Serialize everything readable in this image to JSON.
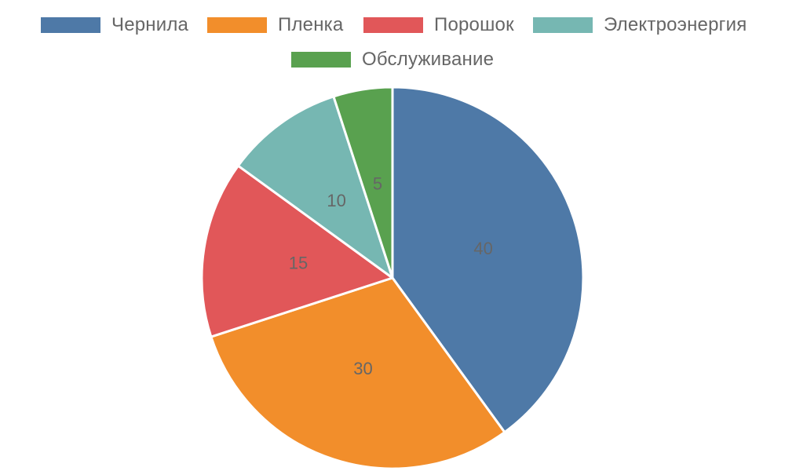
{
  "chart_data": {
    "type": "pie",
    "categories": [
      "Чернила",
      "Пленка",
      "Порошок",
      "Электроэнергия",
      "Обслуживание"
    ],
    "values": [
      40,
      30,
      15,
      10,
      5
    ],
    "colors": [
      "#4e79a7",
      "#f28e2b",
      "#e15759",
      "#76b7b2",
      "#59a14f"
    ],
    "data_labels": [
      "40",
      "30",
      "15",
      "10",
      "5"
    ],
    "legend_position": "top",
    "slice_border_color": "#ffffff"
  }
}
